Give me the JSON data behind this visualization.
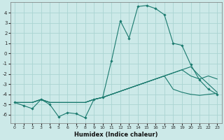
{
  "xlabel": "Humidex (Indice chaleur)",
  "background_color": "#cce9e8",
  "grid_color": "#aad4d2",
  "line_color": "#1a7a6e",
  "x_values": [
    0,
    1,
    2,
    3,
    4,
    5,
    6,
    7,
    8,
    9,
    10,
    11,
    12,
    13,
    14,
    15,
    16,
    17,
    18,
    19,
    20,
    21,
    22,
    23
  ],
  "line1": [
    -4.8,
    -5.1,
    -5.4,
    -4.5,
    -5.0,
    -6.2,
    -5.8,
    -5.9,
    -6.3,
    -4.5,
    -4.3,
    -0.7,
    3.2,
    1.5,
    4.6,
    4.7,
    4.4,
    3.8,
    1.0,
    0.8,
    -1.1,
    -2.6,
    -3.5,
    -4.0
  ],
  "line2": [
    -4.8,
    -4.8,
    -4.8,
    -4.5,
    -4.8,
    -4.8,
    -4.8,
    -4.8,
    -4.8,
    -4.5,
    -4.3,
    -4.0,
    -3.7,
    -3.4,
    -3.1,
    -2.8,
    -2.5,
    -2.2,
    -1.9,
    -1.6,
    -1.3,
    -2.2,
    -3.0,
    -3.8
  ],
  "line3": [
    -4.8,
    -4.8,
    -4.8,
    -4.5,
    -4.8,
    -4.8,
    -4.8,
    -4.8,
    -4.8,
    -4.5,
    -4.3,
    -4.0,
    -3.7,
    -3.4,
    -3.1,
    -2.8,
    -2.5,
    -2.2,
    -1.9,
    -1.6,
    -2.2,
    -2.5,
    -2.2,
    -2.5
  ],
  "line4": [
    -4.8,
    -4.8,
    -4.8,
    -4.5,
    -4.8,
    -4.8,
    -4.8,
    -4.8,
    -4.8,
    -4.5,
    -4.3,
    -4.0,
    -3.7,
    -3.4,
    -3.1,
    -2.8,
    -2.5,
    -2.2,
    -3.5,
    -3.8,
    -4.0,
    -4.1,
    -4.0,
    -3.9
  ],
  "ylim": [
    -6.8,
    5.0
  ],
  "xlim": [
    -0.5,
    23.5
  ],
  "yticks": [
    -6,
    -5,
    -4,
    -3,
    -2,
    -1,
    0,
    1,
    2,
    3,
    4
  ],
  "xticks": [
    0,
    1,
    2,
    3,
    4,
    5,
    6,
    7,
    8,
    9,
    10,
    11,
    12,
    13,
    14,
    15,
    16,
    17,
    18,
    19,
    20,
    21,
    22,
    23
  ],
  "figsize": [
    3.2,
    2.0
  ],
  "dpi": 100
}
